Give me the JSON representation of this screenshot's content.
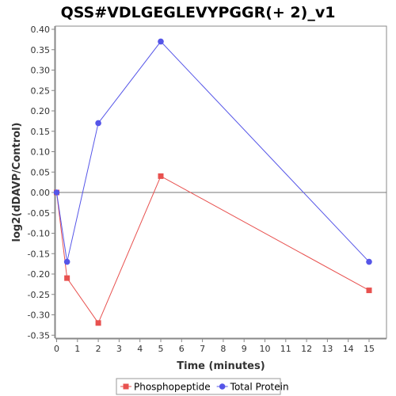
{
  "chart_data": {
    "type": "line",
    "title": "QSS#VDLGEGLEVYPGGR(+ 2)_v1",
    "xlabel": "Time (minutes)",
    "ylabel": "log2(dDAVP/Control)",
    "xlim": [
      0,
      16
    ],
    "ylim": [
      -0.36,
      0.41
    ],
    "x_ticks": [
      0,
      1,
      2,
      3,
      4,
      5,
      6,
      7,
      8,
      9,
      10,
      11,
      12,
      13,
      14,
      15
    ],
    "y_ticks": [
      0.4,
      0.35,
      0.3,
      0.25,
      0.2,
      0.15,
      0.1,
      0.05,
      0.0,
      -0.05,
      -0.1,
      -0.15,
      -0.2,
      -0.25,
      -0.3,
      -0.35
    ],
    "grid": false,
    "legend_position": "bottom",
    "series": [
      {
        "name": "Phosphopeptide",
        "color": "#e8514f",
        "marker": "square",
        "points": [
          [
            0,
            0.0
          ],
          [
            0.5,
            -0.21
          ],
          [
            2,
            -0.32
          ],
          [
            5,
            0.04
          ],
          [
            15,
            -0.24
          ]
        ]
      },
      {
        "name": "Total Protein",
        "color": "#5555e8",
        "marker": "circle",
        "points": [
          [
            0,
            0.0
          ],
          [
            0.5,
            -0.17
          ],
          [
            2,
            0.17
          ],
          [
            5,
            0.37
          ],
          [
            15,
            -0.17
          ]
        ]
      }
    ]
  }
}
